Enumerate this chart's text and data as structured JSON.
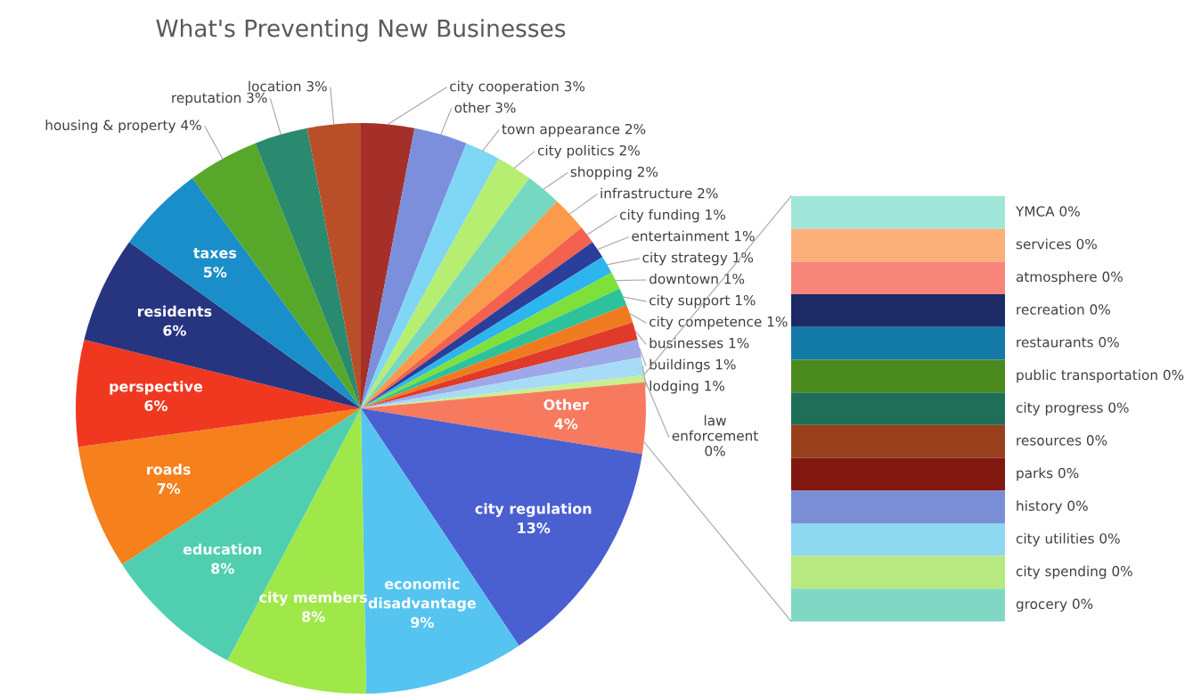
{
  "chart_data": [
    {
      "type": "pie",
      "title": "What's Preventing New Businesses",
      "categories": [
        "city cooperation",
        "other",
        "town appearance",
        "city politics",
        "shopping",
        "infrastructure",
        "city funding",
        "entertainment",
        "city strategy",
        "downtown",
        "city support",
        "city competence",
        "businesses",
        "buildings",
        "lodging",
        "law enforcement",
        "Other",
        "city regulation",
        "economic disadvantage",
        "city members",
        "education",
        "roads",
        "perspective",
        "residents",
        "taxes",
        "housing & property",
        "reputation",
        "location"
      ],
      "values": [
        3,
        3,
        2,
        2,
        2,
        2,
        1,
        1,
        1,
        1,
        1,
        1,
        1,
        1,
        1,
        0.4,
        4,
        13,
        9,
        8,
        8,
        7,
        6,
        6,
        5,
        4,
        3,
        3
      ],
      "value_labels": [
        "3%",
        "3%",
        "2%",
        "2%",
        "2%",
        "2%",
        "1%",
        "1%",
        "1%",
        "1%",
        "1%",
        "1%",
        "1%",
        "1%",
        "1%",
        "0%",
        "4%",
        "13%",
        "9%",
        "8%",
        "8%",
        "7%",
        "6%",
        "6%",
        "5%",
        "4%",
        "3%",
        "3%"
      ],
      "colors": [
        "#a5302a",
        "#7b8fdc",
        "#7fd6f5",
        "#b5ee70",
        "#75d8c0",
        "#fb9a4b",
        "#f5614f",
        "#2b3f9a",
        "#2cb5ee",
        "#7ee03a",
        "#2cc29b",
        "#f07a20",
        "#e03a2a",
        "#9ea8e8",
        "#a6dcf5",
        "#c8ef90",
        "#f77a5f",
        "#4a60d0",
        "#55c4f0",
        "#a0e84a",
        "#50cfb0",
        "#f5801c",
        "#f03820",
        "#273580",
        "#1a8ec8",
        "#57a82a",
        "#2a8a70",
        "#b84f28"
      ]
    },
    {
      "type": "other",
      "categories": [
        "YMCA 0%",
        "services 0%",
        "atmosphere 0%",
        "recreation 0%",
        "restaurants 0%",
        "public transportation 0%",
        "city progress 0%",
        "resources 0%",
        "parks 0%",
        "history 0%",
        "city utilities 0%",
        "city spending 0%",
        "grocery 0%"
      ],
      "colors": [
        "#a0e6d8",
        "#fbb07a",
        "#f8857a",
        "#1e2a66",
        "#137aa8",
        "#4a8a1e",
        "#1e6e58",
        "#98401c",
        "#801810",
        "#7a8ed6",
        "#8ed8f0",
        "#b8e880",
        "#80d8c4"
      ]
    }
  ]
}
